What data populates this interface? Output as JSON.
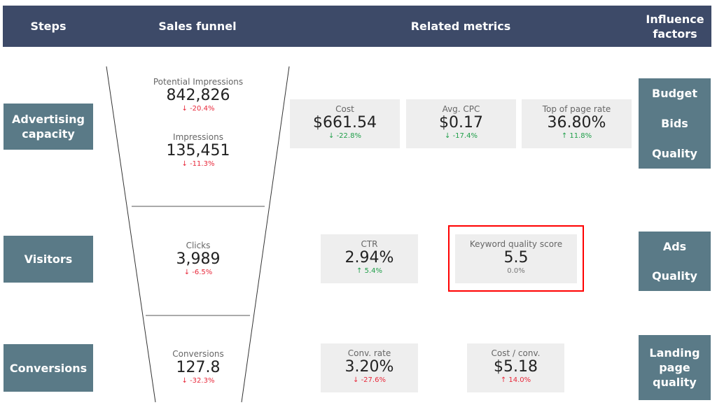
{
  "header": {
    "steps": "Steps",
    "funnel": "Sales funnel",
    "metrics": "Related metrics",
    "factors": "Influence factors"
  },
  "steps": [
    "Advertising capacity",
    "Visitors",
    "Conversions"
  ],
  "funnel": [
    {
      "label": "Potential Impressions",
      "value": "842,826",
      "change": "-20.4%",
      "dir": "down",
      "tone": "neg"
    },
    {
      "label": "Impressions",
      "value": "135,451",
      "change": "-11.3%",
      "dir": "down",
      "tone": "neg"
    },
    {
      "label": "Clicks",
      "value": "3,989",
      "change": "-6.5%",
      "dir": "down",
      "tone": "neg"
    },
    {
      "label": "Conversions",
      "value": "127.8",
      "change": "-32.3%",
      "dir": "down",
      "tone": "neg"
    }
  ],
  "metrics": [
    {
      "label": "Cost",
      "value": "$661.54",
      "change": "-22.8%",
      "dir": "down",
      "tone": "pos"
    },
    {
      "label": "Avg. CPC",
      "value": "$0.17",
      "change": "-17.4%",
      "dir": "down",
      "tone": "pos"
    },
    {
      "label": "Top of page rate",
      "value": "36.80%",
      "change": "11.8%",
      "dir": "up",
      "tone": "pos"
    },
    {
      "label": "CTR",
      "value": "2.94%",
      "change": "5.4%",
      "dir": "up",
      "tone": "pos"
    },
    {
      "label": "Keyword quality score",
      "value": "5.5",
      "change": "0.0%",
      "dir": "none",
      "tone": "neu"
    },
    {
      "label": "Conv. rate",
      "value": "3.20%",
      "change": "-27.6%",
      "dir": "down",
      "tone": "neg"
    },
    {
      "label": "Cost / conv.",
      "value": "$5.18",
      "change": "14.0%",
      "dir": "up",
      "tone": "neg"
    }
  ],
  "factors": [
    [
      "Budget",
      "Bids",
      "Quality"
    ],
    [
      "Ads",
      "Quality"
    ],
    [
      "Landing page quality"
    ]
  ],
  "colors": {
    "header": "#3d4a68",
    "box": "#5a7a87",
    "highlight": "#ff0000",
    "negative": "#e8283a",
    "positive": "#1e9e48"
  }
}
